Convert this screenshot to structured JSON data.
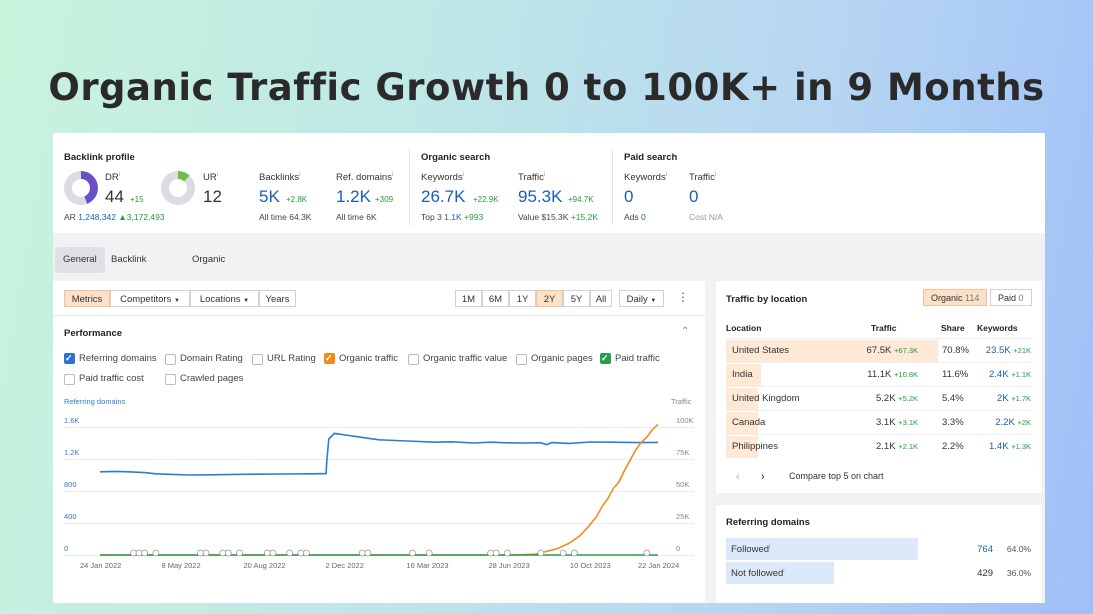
{
  "headline": "Organic Traffic Growth 0 to 100K+ in 9 Months",
  "backlink_profile": {
    "title": "Backlink profile",
    "dr": {
      "label": "DR",
      "value": "44",
      "delta": "+15",
      "fill": 0.44
    },
    "ur": {
      "label": "UR",
      "value": "12",
      "fill": 0.12
    },
    "ar": {
      "label": "AR",
      "value": "1,248,342",
      "delta": "▲3,172,493"
    },
    "backlinks": {
      "label": "Backlinks",
      "value": "5K",
      "delta": "+2.8K",
      "sub_label": "All time",
      "sub_value": "64.3K"
    },
    "ref_domains": {
      "label": "Ref. domains",
      "value": "1.2K",
      "delta": "+309",
      "sub_label": "All time",
      "sub_value": "6K"
    }
  },
  "organic_search": {
    "title": "Organic search",
    "keywords": {
      "label": "Keywords",
      "value": "26.7K",
      "delta": "+22.9K",
      "sub_label": "Top 3",
      "sub_value": "1.1K",
      "sub_delta": "+993"
    },
    "traffic": {
      "label": "Traffic",
      "value": "95.3K",
      "delta": "+94.7K",
      "sub_label": "Value",
      "sub_value": "$15.3K",
      "sub_delta": "+15.2K"
    }
  },
  "paid_search": {
    "title": "Paid search",
    "keywords": {
      "label": "Keywords",
      "value": "0",
      "sub_label": "Ads",
      "sub_value": "0"
    },
    "traffic": {
      "label": "Traffic",
      "value": "0",
      "sub_label": "Cost",
      "sub_value": "N/A"
    }
  },
  "tabs": [
    "General",
    "Backlink profile",
    "Organic search"
  ],
  "toolbar": {
    "left": [
      "Metrics",
      "Competitors",
      "Locations",
      "Years"
    ],
    "ranges": [
      "1M",
      "6M",
      "1Y",
      "2Y",
      "5Y",
      "All"
    ],
    "interval": "Daily",
    "more": "⋮",
    "dropdown_caret": "▼"
  },
  "performance": {
    "title": "Performance",
    "toggle": "⌃",
    "checkboxes": [
      {
        "label": "Referring domains",
        "checked": true,
        "color": "#2f6fd6"
      },
      {
        "label": "Domain Rating",
        "checked": false
      },
      {
        "label": "URL Rating",
        "checked": false
      },
      {
        "label": "Organic traffic",
        "checked": true,
        "color": "#f08c1a"
      },
      {
        "label": "Organic traffic value",
        "checked": false
      },
      {
        "label": "Organic pages",
        "checked": false
      },
      {
        "label": "Paid traffic",
        "checked": true,
        "color": "#2a9d4e"
      },
      {
        "label": "Paid traffic cost",
        "checked": false
      },
      {
        "label": "Crawled pages",
        "checked": false
      }
    ]
  },
  "chart_data": {
    "type": "line",
    "left_axis_title": "Referring domains",
    "right_axis_title": "Traffic",
    "left_ticks": [
      "1.6K",
      "1.2K",
      "800",
      "400",
      "0"
    ],
    "right_ticks": [
      "100K",
      "75K",
      "50K",
      "25K",
      "0"
    ],
    "x_ticks": [
      "24 Jan 2022",
      "8 May 2022",
      "20 Aug 2022",
      "2 Dec 2022",
      "16 Mar 2023",
      "28 Jun 2023",
      "10 Oct 2023",
      "22 Jan 2024"
    ],
    "left_ylim": [
      0,
      1800
    ],
    "right_ylim": [
      0,
      112500
    ],
    "colors": {
      "referring_domains": "#2f7bd0",
      "organic_traffic": "#f08c1a",
      "paid_traffic": "#2a9d4e"
    },
    "series": [
      {
        "name": "Referring domains",
        "axis": "left",
        "points": [
          [
            0,
            1040
          ],
          [
            3,
            1045
          ],
          [
            5,
            1040
          ],
          [
            8,
            1030
          ],
          [
            10,
            1015
          ],
          [
            13,
            1008
          ],
          [
            16,
            1000
          ],
          [
            20,
            1003
          ],
          [
            24,
            1008
          ],
          [
            28,
            1010
          ],
          [
            33,
            1012
          ],
          [
            38,
            1015
          ],
          [
            40.5,
            1018
          ],
          [
            40.7,
            1220
          ],
          [
            41,
            1450
          ],
          [
            42,
            1520
          ],
          [
            44,
            1500
          ],
          [
            47,
            1470
          ],
          [
            50,
            1440
          ],
          [
            55,
            1425
          ],
          [
            60,
            1410
          ],
          [
            63,
            1415
          ],
          [
            67,
            1400
          ],
          [
            70,
            1410
          ],
          [
            73,
            1402
          ],
          [
            76,
            1400
          ],
          [
            79,
            1404
          ],
          [
            80,
            1380
          ],
          [
            81,
            1405
          ],
          [
            84,
            1395
          ],
          [
            88,
            1412
          ],
          [
            92,
            1410
          ],
          [
            96,
            1405
          ],
          [
            100,
            1408
          ]
        ]
      },
      {
        "name": "Organic traffic",
        "axis": "right",
        "points": [
          [
            0,
            0
          ],
          [
            74,
            0
          ],
          [
            78,
            600
          ],
          [
            82,
            5000
          ],
          [
            84,
            9000
          ],
          [
            86,
            15000
          ],
          [
            87.5,
            22000
          ],
          [
            89,
            30000
          ],
          [
            90,
            38000
          ],
          [
            91,
            44000
          ],
          [
            92,
            52000
          ],
          [
            93,
            57000
          ],
          [
            94,
            66000
          ],
          [
            95,
            74000
          ],
          [
            96,
            82000
          ],
          [
            97,
            88000
          ],
          [
            98,
            92000
          ],
          [
            99,
            98000
          ],
          [
            100,
            102000
          ]
        ]
      },
      {
        "name": "Paid traffic",
        "axis": "right",
        "points": [
          [
            0,
            0
          ],
          [
            100,
            0
          ]
        ]
      }
    ],
    "markers_x": [
      6,
      7,
      8,
      10,
      18,
      19,
      22,
      23,
      25,
      30,
      31,
      34,
      36,
      37,
      47,
      48,
      56,
      59,
      70,
      71,
      73,
      79,
      83,
      85,
      98
    ]
  },
  "traffic_by_location": {
    "title": "Traffic by location",
    "tabs": [
      {
        "label": "Organic",
        "count": "114"
      },
      {
        "label": "Paid",
        "count": "0"
      }
    ],
    "headers": [
      "Location",
      "Traffic",
      "Share",
      "Keywords"
    ],
    "rows": [
      {
        "location": "United States",
        "traffic": "67.5K",
        "traffic_delta": "+67.3K",
        "share": "70.8%",
        "share_value": 0.708,
        "keywords": "23.5K",
        "keywords_delta": "+21K"
      },
      {
        "location": "India",
        "traffic": "11.1K",
        "traffic_delta": "+10.8K",
        "share": "11.6%",
        "share_value": 0.116,
        "keywords": "2.4K",
        "keywords_delta": "+1.1K"
      },
      {
        "location": "United Kingdom",
        "traffic": "5.2K",
        "traffic_delta": "+5.2K",
        "share": "5.4%",
        "share_value": 0.054,
        "keywords": "2K",
        "keywords_delta": "+1.7K"
      },
      {
        "location": "Canada",
        "traffic": "3.1K",
        "traffic_delta": "+3.1K",
        "share": "3.3%",
        "share_value": 0.033,
        "keywords": "2.2K",
        "keywords_delta": "+2K"
      },
      {
        "location": "Philippines",
        "traffic": "2.1K",
        "traffic_delta": "+2.1K",
        "share": "2.2%",
        "share_value": 0.022,
        "keywords": "1.4K",
        "keywords_delta": "+1.3K"
      }
    ],
    "prev": "‹",
    "next": "›",
    "compare": "Compare top 5 on chart"
  },
  "referring_domains": {
    "title": "Referring domains",
    "rows": [
      {
        "label": "Followed",
        "value": "764",
        "percent": "64.0%",
        "share": 0.64
      },
      {
        "label": "Not followed",
        "value": "429",
        "percent": "36.0%",
        "share": 0.36
      }
    ]
  }
}
